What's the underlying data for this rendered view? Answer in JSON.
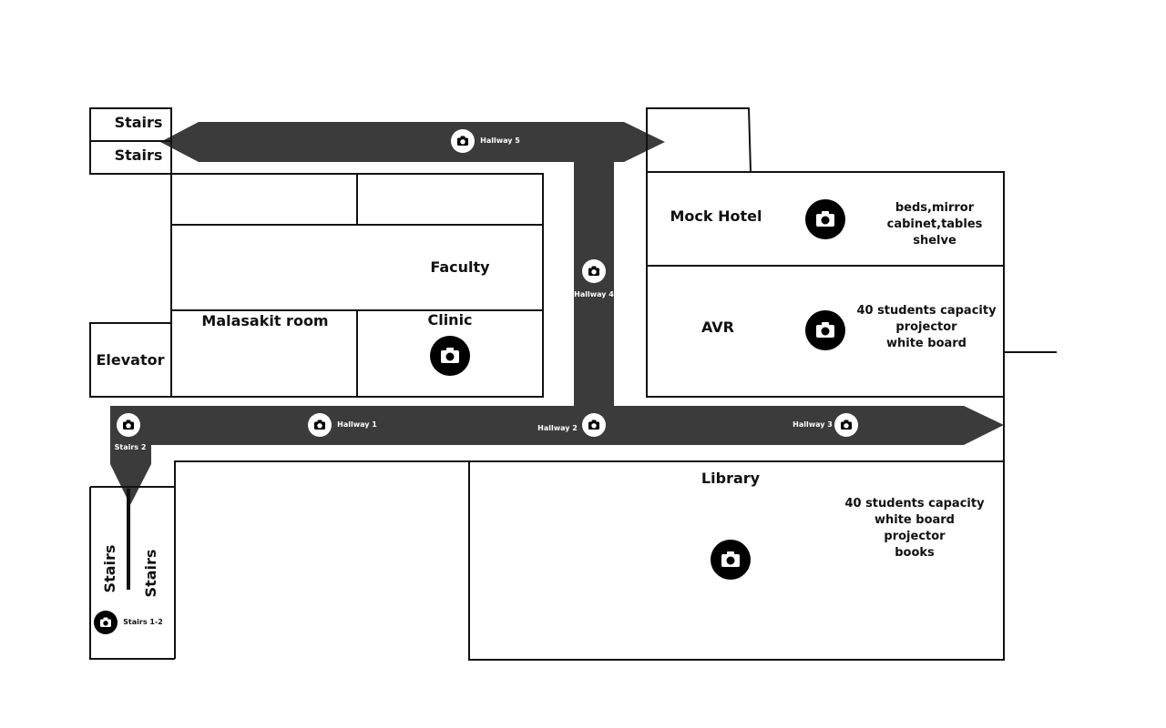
{
  "colors": {
    "hallway": "#3b3b3b",
    "wall": "#111111",
    "camera_dark": "#000000",
    "camera_light": "#ffffff"
  },
  "rooms": {
    "stairs_top_1": "Stairs",
    "stairs_top_2": "Stairs",
    "faculty": "Faculty",
    "malasakit": "Malasakit room",
    "clinic": "Clinic",
    "elevator": "Elevator",
    "mock_hotel": "Mock Hotel",
    "avr": "AVR",
    "library": "Library",
    "stairs_bottom_left": "Stairs",
    "stairs_bottom_right": "Stairs"
  },
  "notes": {
    "mock_hotel": "beds,mirror\ncabinet,tables\nshelve",
    "avr": "40 students capacity\nprojector\nwhite board",
    "library": "40 students capacity\nwhite board\nprojector\nbooks"
  },
  "hallways": {
    "h1": "Hallway 1",
    "h2": "Hallway 2",
    "h3": "Hallway 3",
    "h4": "Hallway 4",
    "h5": "Hallway 5",
    "stairs2": "Stairs 2",
    "stairs12": "Stairs 1-2"
  },
  "icons": {
    "camera": "camera-icon"
  }
}
